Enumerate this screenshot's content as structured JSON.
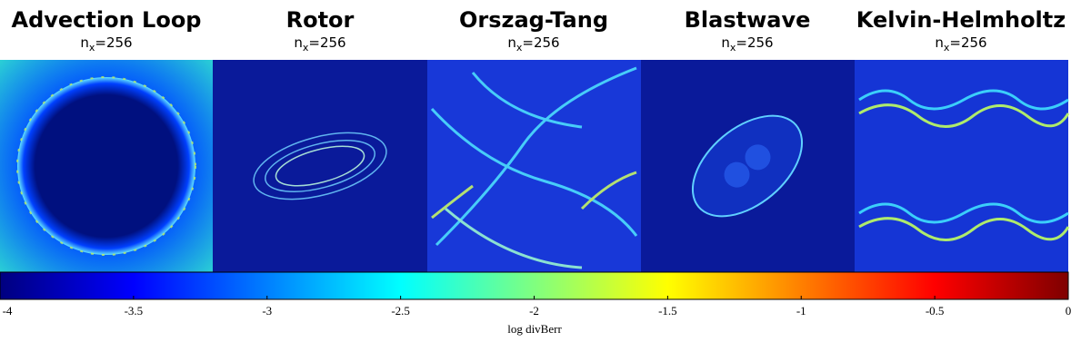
{
  "panels": [
    {
      "title": "Advection Loop",
      "sub": {
        "base": "n",
        "subscript": "x",
        "rest": "=256"
      }
    },
    {
      "title": "Rotor",
      "sub": {
        "base": "n",
        "subscript": "x",
        "rest": "=256"
      }
    },
    {
      "title": "Orszag-Tang",
      "sub": {
        "base": "n",
        "subscript": "x",
        "rest": "=256"
      }
    },
    {
      "title": "Blastwave",
      "sub": {
        "base": "n",
        "subscript": "x",
        "rest": "=256"
      }
    },
    {
      "title": "Kelvin-Helmholtz",
      "sub": {
        "base": "n",
        "subscript": "x",
        "rest": "=256"
      }
    }
  ],
  "colorbar": {
    "label": "log divBerr",
    "lim": [
      -4,
      0
    ],
    "ticks": [
      -4,
      -3.5,
      -3,
      -2.5,
      -2,
      -1.5,
      -1,
      -0.5,
      0
    ]
  }
}
